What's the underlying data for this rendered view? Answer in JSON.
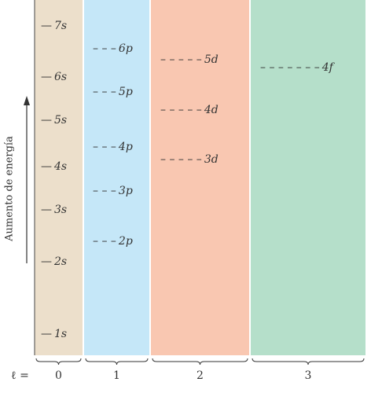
{
  "colors": {
    "l0": "#ecdfcb",
    "l1": "#c5e7f8",
    "l2": "#f9c7b1",
    "l3": "#b5dfca",
    "text": "#333333"
  },
  "y_axis_label": "Aumento de energía",
  "l_symbol": "ℓ =",
  "columns": [
    {
      "l": "0",
      "levels": [
        {
          "label": "1s",
          "marker": "—"
        },
        {
          "label": "2s",
          "marker": "—"
        },
        {
          "label": "3s",
          "marker": "—"
        },
        {
          "label": "4s",
          "marker": "—"
        },
        {
          "label": "5s",
          "marker": "—"
        },
        {
          "label": "6s",
          "marker": "—"
        },
        {
          "label": "7s",
          "marker": "—"
        }
      ]
    },
    {
      "l": "1",
      "levels": [
        {
          "label": "2p",
          "marker": "– – –"
        },
        {
          "label": "3p",
          "marker": "– – –"
        },
        {
          "label": "4p",
          "marker": "– – –"
        },
        {
          "label": "5p",
          "marker": "– – –"
        },
        {
          "label": "6p",
          "marker": "– – –"
        }
      ]
    },
    {
      "l": "2",
      "levels": [
        {
          "label": "3d",
          "marker": "– – – – –"
        },
        {
          "label": "4d",
          "marker": "– – – – –"
        },
        {
          "label": "5d",
          "marker": "– – – – –"
        }
      ]
    },
    {
      "l": "3",
      "levels": [
        {
          "label": "4f",
          "marker": "– – – – – – –"
        }
      ]
    }
  ]
}
